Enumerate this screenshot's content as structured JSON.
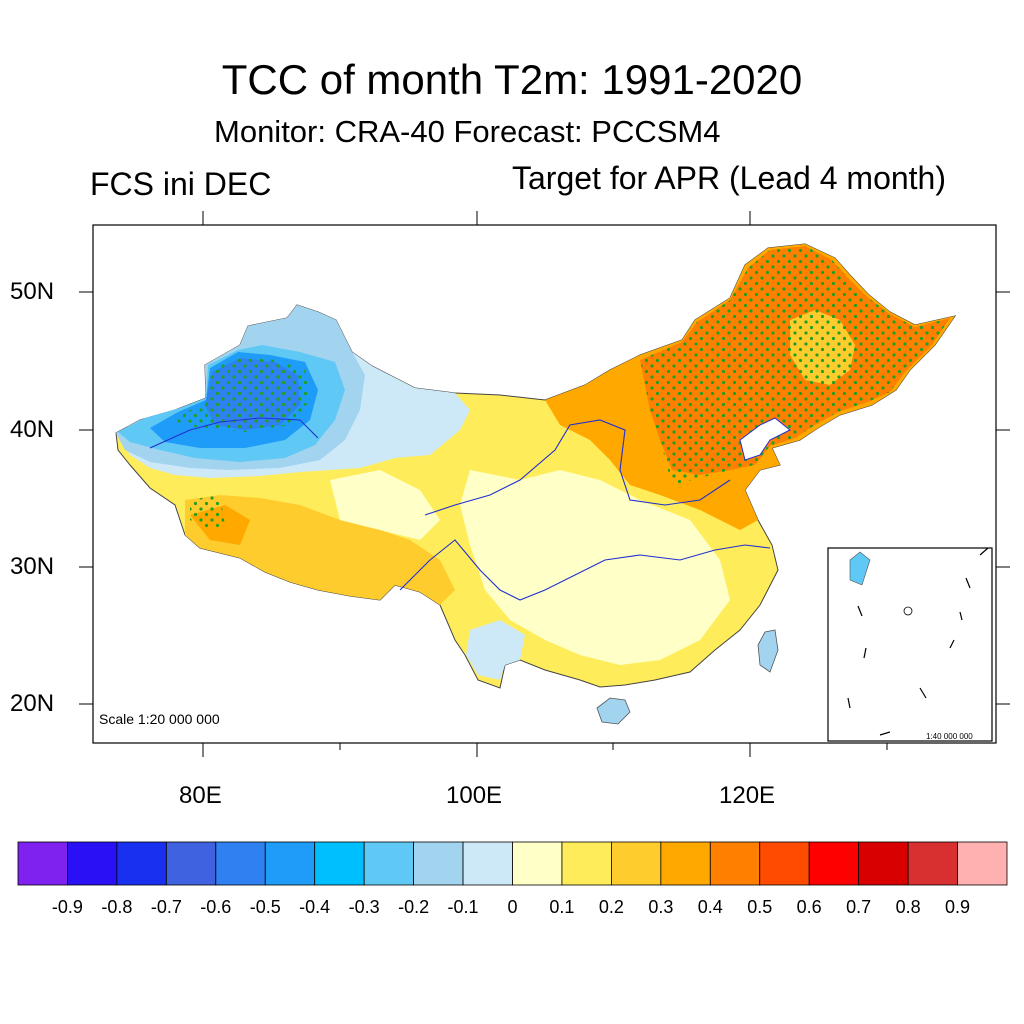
{
  "title": "TCC of month T2m: 1991-2020",
  "subtitle": "Monitor: CRA-40   Forecast: PCCSM4",
  "left_label": "FCS ini DEC",
  "right_label": "Target for APR (Lead 4 month)",
  "scale_note": "Scale 1:20 000 000",
  "inset_scale_note": "1:40 000 000",
  "lat_labels": [
    "50N",
    "40N",
    "30N",
    "20N"
  ],
  "lon_labels": [
    "80E",
    "100E",
    "120E"
  ],
  "stipple_color": "#22a022",
  "river_color": "#2030d0",
  "colorbar": {
    "colors": [
      "#7f22f0",
      "#2a10f5",
      "#1a30f0",
      "#3f62e0",
      "#2f80f0",
      "#1e9cf7",
      "#00bfff",
      "#5fc8f5",
      "#a2d4f0",
      "#cde9f7",
      "#ffffc8",
      "#ffec5a",
      "#ffcc2e",
      "#ffa800",
      "#ff8000",
      "#ff4b00",
      "#ff0000",
      "#d80000",
      "#d83030",
      "#ffb0b0"
    ],
    "labels": [
      "-0.9",
      "-0.8",
      "-0.7",
      "-0.6",
      "-0.5",
      "-0.4",
      "-0.3",
      "-0.2",
      "-0.1",
      "0",
      "0.1",
      "0.2",
      "0.3",
      "0.4",
      "0.5",
      "0.6",
      "0.7",
      "0.8",
      "0.9"
    ]
  }
}
